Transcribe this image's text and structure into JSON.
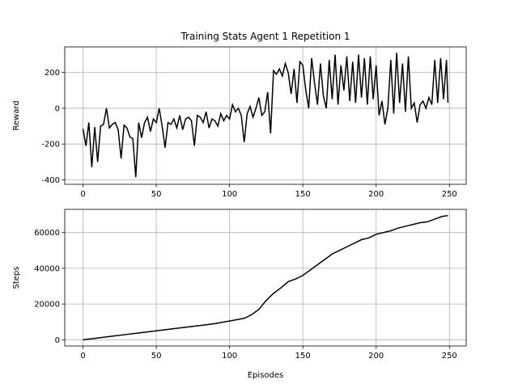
{
  "chart_data": [
    {
      "type": "line",
      "title": "Training Stats Agent 1 Repetition 1",
      "ylabel": "Reward",
      "xlim": [
        -12.45,
        261.45
      ],
      "xticks": [
        0,
        50,
        100,
        150,
        200,
        250
      ],
      "ylim": [
        -425,
        343
      ],
      "yticks": [
        -400,
        -200,
        0,
        200
      ],
      "grid": true,
      "x": [
        0,
        2,
        4,
        6,
        8,
        10,
        12,
        14,
        16,
        18,
        20,
        22,
        24,
        26,
        28,
        30,
        32,
        34,
        36,
        38,
        40,
        42,
        44,
        46,
        48,
        50,
        52,
        54,
        56,
        58,
        60,
        62,
        64,
        66,
        68,
        70,
        72,
        74,
        76,
        78,
        80,
        82,
        84,
        86,
        88,
        90,
        92,
        94,
        96,
        98,
        100,
        102,
        104,
        106,
        108,
        110,
        112,
        114,
        116,
        118,
        120,
        122,
        124,
        126,
        128,
        130,
        132,
        134,
        136,
        138,
        140,
        142,
        144,
        146,
        148,
        150,
        152,
        154,
        156,
        158,
        160,
        162,
        164,
        166,
        168,
        170,
        172,
        174,
        176,
        178,
        180,
        182,
        184,
        186,
        188,
        190,
        192,
        194,
        196,
        198,
        200,
        202,
        204,
        206,
        208,
        210,
        212,
        214,
        216,
        218,
        220,
        222,
        224,
        226,
        228,
        230,
        232,
        234,
        236,
        238,
        240,
        242,
        244,
        246,
        248,
        249
      ],
      "series": [
        {
          "color": "#000000",
          "values": [
            -115,
            -210,
            -80,
            -330,
            -105,
            -300,
            -100,
            -90,
            0,
            -110,
            -90,
            -80,
            -120,
            -280,
            -95,
            -110,
            -160,
            -170,
            -385,
            -80,
            -165,
            -80,
            -50,
            -130,
            -60,
            -80,
            0,
            -100,
            -220,
            -80,
            -90,
            -60,
            -110,
            -40,
            -120,
            -60,
            -50,
            -70,
            -210,
            -40,
            -50,
            -80,
            -20,
            -110,
            -60,
            -70,
            -100,
            -30,
            -70,
            -40,
            -60,
            20,
            -20,
            0,
            -40,
            -190,
            -30,
            10,
            -50,
            0,
            60,
            -40,
            -20,
            90,
            -140,
            210,
            190,
            220,
            180,
            250,
            200,
            80,
            220,
            30,
            260,
            240,
            100,
            0,
            280,
            140,
            20,
            250,
            70,
            0,
            270,
            50,
            300,
            20,
            240,
            100,
            290,
            40,
            260,
            30,
            300,
            60,
            280,
            20,
            290,
            50,
            240,
            -40,
            40,
            -90,
            0,
            270,
            -30,
            310,
            30,
            250,
            -20,
            290,
            0,
            30,
            -80,
            20,
            40,
            0,
            60,
            20,
            270,
            30,
            280,
            50,
            270,
            30
          ]
        }
      ]
    },
    {
      "type": "line",
      "xlabel": "Episodes",
      "ylabel": "Steps",
      "xlim": [
        -12.45,
        261.45
      ],
      "xticks": [
        0,
        50,
        100,
        150,
        200,
        250
      ],
      "ylim": [
        -3475,
        72975
      ],
      "yticks": [
        0,
        20000,
        40000,
        60000
      ],
      "grid": true,
      "x": [
        0,
        10,
        20,
        30,
        40,
        50,
        60,
        70,
        80,
        90,
        100,
        110,
        115,
        120,
        125,
        130,
        135,
        140,
        145,
        150,
        155,
        160,
        165,
        170,
        175,
        180,
        185,
        190,
        195,
        200,
        205,
        210,
        215,
        220,
        225,
        230,
        235,
        240,
        245,
        249
      ],
      "series": [
        {
          "color": "#000000",
          "values": [
            0,
            1000,
            2000,
            3000,
            4000,
            5000,
            6000,
            7000,
            8000,
            9000,
            10500,
            12000,
            14000,
            17000,
            22000,
            26000,
            29000,
            32500,
            34000,
            36000,
            39000,
            42000,
            45000,
            48000,
            50000,
            52000,
            54000,
            56000,
            57000,
            59000,
            60000,
            61000,
            62500,
            63500,
            64500,
            65500,
            66000,
            67500,
            69000,
            69500
          ]
        }
      ]
    }
  ]
}
